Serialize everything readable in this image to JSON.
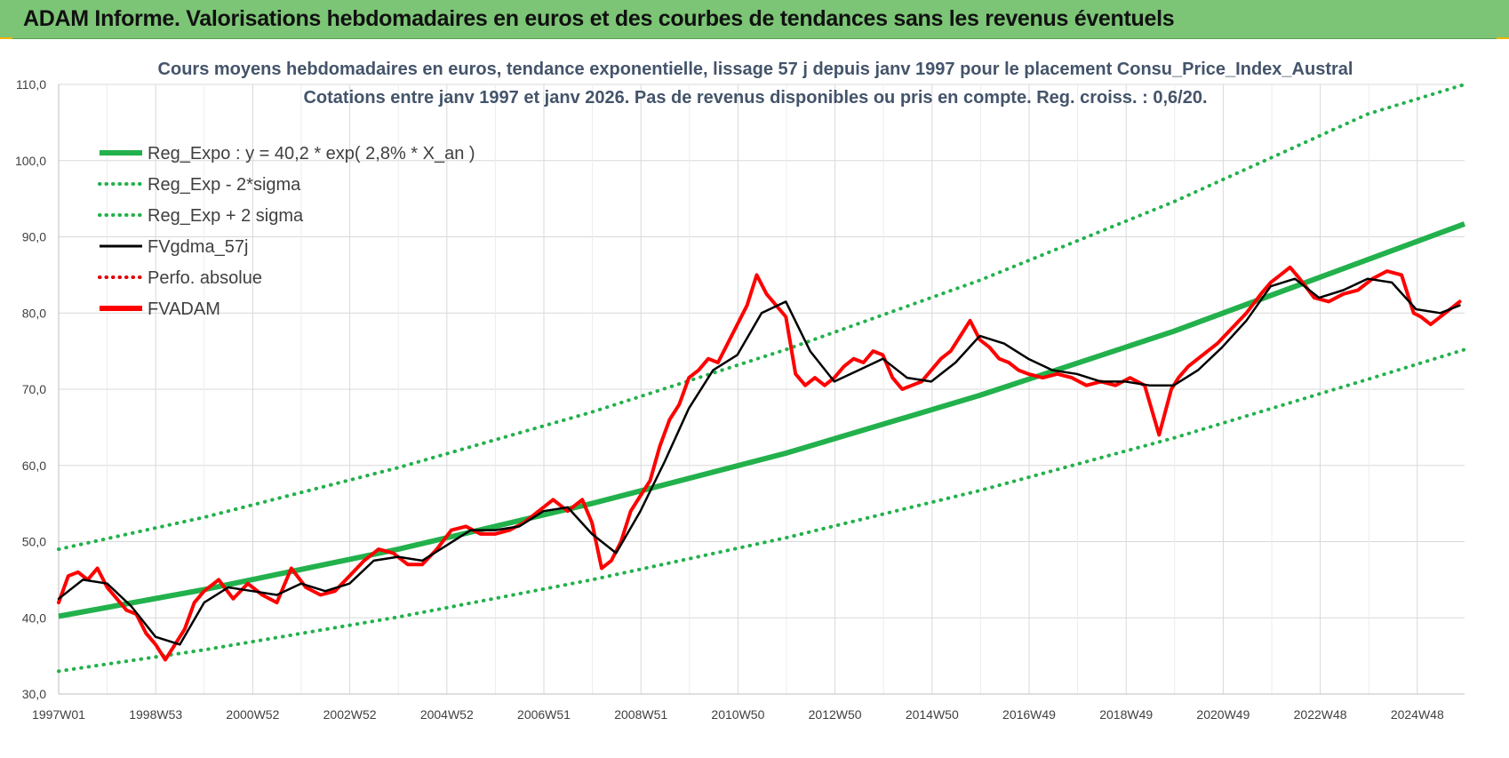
{
  "header": {
    "title": "ADAM Informe. Valorisations hebdomadaires en euros et des courbes de tendances sans les revenus éventuels"
  },
  "colors": {
    "header_bg": "#7cc576",
    "trend": "#22b14c",
    "band": "#22b14c",
    "gdma": "#000000",
    "perfo": "#e00000",
    "fvadam": "#ff0000",
    "grid": "#d9d9d9"
  },
  "chart_data": {
    "type": "line",
    "title": "Cours moyens hebdomadaires en euros, tendance exponentielle, lissage 57 j depuis janv 1997  pour le placement Consu_Price_Index_Austral",
    "subtitle": "Cotations entre janv 1997 et janv 2026. Pas de revenus disponibles ou pris  en compte. Reg. croiss. : 0,6/20.",
    "xlabel": "",
    "ylabel": "",
    "ylim": [
      30,
      110
    ],
    "y_ticks": [
      "30,0",
      "40,0",
      "50,0",
      "60,0",
      "70,0",
      "80,0",
      "90,0",
      "100,0",
      "110,0"
    ],
    "x_ticks": [
      "1997W01",
      "1998W53",
      "2000W52",
      "2002W52",
      "2004W52",
      "2006W51",
      "2008W51",
      "2010W50",
      "2012W50",
      "2014W50",
      "2016W49",
      "2018W49",
      "2020W49",
      "2022W48",
      "2024W48"
    ],
    "x_range_years": [
      1997.0,
      2026.0
    ],
    "grid": true,
    "legend_position": "top-left",
    "legend": [
      {
        "label": "Reg_Expo : y = 40,2 * exp( 2,8% *  X_an )",
        "color": "#22b14c",
        "style": "solid-thick"
      },
      {
        "label": "Reg_Exp - 2*sigma",
        "color": "#22b14c",
        "style": "dotted"
      },
      {
        "label": "Reg_Exp + 2 sigma",
        "color": "#22b14c",
        "style": "dotted"
      },
      {
        "label": "FVgdma_57j",
        "color": "#000000",
        "style": "solid"
      },
      {
        "label": "Perfo. absolue",
        "color": "#e00000",
        "style": "dotted"
      },
      {
        "label": "FVADAM",
        "color": "#ff0000",
        "style": "solid-thick"
      }
    ],
    "series": [
      {
        "name": "Reg_Expo : y = 40,2 * exp( 2,8% *  X_an )",
        "x": [
          1997,
          2000,
          2004,
          2008,
          2012,
          2016,
          2020,
          2024,
          2026
        ],
        "y": [
          40.2,
          43.7,
          49.0,
          55.0,
          61.6,
          69.2,
          77.6,
          87.0,
          91.7
        ]
      },
      {
        "name": "Reg_Exp - 2*sigma",
        "x": [
          1997,
          2000,
          2004,
          2008,
          2012,
          2016,
          2020,
          2024,
          2026
        ],
        "y": [
          33.0,
          35.8,
          40.1,
          45.0,
          50.5,
          56.7,
          63.6,
          71.3,
          75.2
        ]
      },
      {
        "name": "Reg_Exp + 2 sigma",
        "x": [
          1997,
          2000,
          2004,
          2008,
          2012,
          2016,
          2020,
          2024,
          2026
        ],
        "y": [
          49.0,
          53.2,
          59.7,
          67.0,
          75.2,
          84.3,
          94.6,
          106.1,
          110.0
        ]
      },
      {
        "name": "FVADAM",
        "x": [
          1997.0,
          1997.2,
          1997.4,
          1997.6,
          1997.8,
          1998.0,
          1998.2,
          1998.4,
          1998.6,
          1998.8,
          1999.0,
          1999.2,
          1999.4,
          1999.6,
          1999.8,
          2000.0,
          2000.3,
          2000.6,
          2000.9,
          2001.2,
          2001.5,
          2001.8,
          2002.1,
          2002.4,
          2002.7,
          2003.0,
          2003.3,
          2003.6,
          2003.9,
          2004.2,
          2004.5,
          2004.8,
          2005.1,
          2005.4,
          2005.7,
          2006.0,
          2006.3,
          2006.6,
          2006.9,
          2007.2,
          2007.5,
          2007.8,
          2008.0,
          2008.2,
          2008.4,
          2008.6,
          2008.8,
          2009.0,
          2009.2,
          2009.4,
          2009.6,
          2009.8,
          2010.0,
          2010.2,
          2010.4,
          2010.6,
          2010.8,
          2011.0,
          2011.2,
          2011.4,
          2011.6,
          2011.8,
          2012.0,
          2012.2,
          2012.4,
          2012.6,
          2012.8,
          2013.0,
          2013.2,
          2013.4,
          2013.6,
          2013.8,
          2014.0,
          2014.2,
          2014.4,
          2014.6,
          2014.8,
          2015.0,
          2015.2,
          2015.4,
          2015.6,
          2015.8,
          2016.0,
          2016.2,
          2016.4,
          2016.6,
          2016.8,
          2017.0,
          2017.3,
          2017.6,
          2017.9,
          2018.2,
          2018.5,
          2018.8,
          2019.1,
          2019.4,
          2019.7,
          2019.95,
          2020.1,
          2020.3,
          2020.6,
          2020.9,
          2021.2,
          2021.5,
          2021.8,
          2022.0,
          2022.2,
          2022.4,
          2022.6,
          2022.9,
          2023.2,
          2023.5,
          2023.8,
          2024.1,
          2024.4,
          2024.7,
          2024.95,
          2025.1,
          2025.3,
          2025.6,
          2025.9
        ],
        "y": [
          42.0,
          45.5,
          46.0,
          45.0,
          46.5,
          44.0,
          42.5,
          41.0,
          40.5,
          38.0,
          36.5,
          34.5,
          36.5,
          38.5,
          42.0,
          43.5,
          45.0,
          42.5,
          44.5,
          43.0,
          42.0,
          46.5,
          44.0,
          43.0,
          43.5,
          45.5,
          47.5,
          49.0,
          48.5,
          47.0,
          47.0,
          49.0,
          51.5,
          52.0,
          51.0,
          51.0,
          51.5,
          52.5,
          54.0,
          55.5,
          54.0,
          55.5,
          52.5,
          46.5,
          47.5,
          50.0,
          54.0,
          56.0,
          58.0,
          62.5,
          66.0,
          68.0,
          71.5,
          72.5,
          74.0,
          73.5,
          76.0,
          78.5,
          81.0,
          85.0,
          82.5,
          81.0,
          79.5,
          72.0,
          70.5,
          71.5,
          70.5,
          71.5,
          73.0,
          74.0,
          73.5,
          75.0,
          74.5,
          71.5,
          70.0,
          70.5,
          71.0,
          72.5,
          74.0,
          75.0,
          77.0,
          79.0,
          76.5,
          75.5,
          74.0,
          73.5,
          72.5,
          72.0,
          71.5,
          72.0,
          71.5,
          70.5,
          71.0,
          70.5,
          71.5,
          70.5,
          64.0,
          70.0,
          71.5,
          73.0,
          74.5,
          76.0,
          78.0,
          80.0,
          82.5,
          84.0,
          85.0,
          86.0,
          84.5,
          82.0,
          81.5,
          82.5,
          83.0,
          84.5,
          85.5,
          85.0,
          80.0,
          79.5,
          78.5,
          80.0,
          81.5
        ]
      },
      {
        "name": "FVgdma_57j",
        "x": [
          1997.0,
          1997.5,
          1998.0,
          1998.5,
          1999.0,
          1999.5,
          2000.0,
          2000.5,
          2001.0,
          2001.5,
          2002.0,
          2002.5,
          2003.0,
          2003.5,
          2004.0,
          2004.5,
          2005.0,
          2005.5,
          2006.0,
          2006.5,
          2007.0,
          2007.5,
          2008.0,
          2008.5,
          2009.0,
          2009.5,
          2010.0,
          2010.5,
          2011.0,
          2011.5,
          2012.0,
          2012.5,
          2013.0,
          2013.5,
          2014.0,
          2014.5,
          2015.0,
          2015.5,
          2016.0,
          2016.5,
          2017.0,
          2017.5,
          2018.0,
          2018.5,
          2019.0,
          2019.5,
          2020.0,
          2020.5,
          2021.0,
          2021.5,
          2022.0,
          2022.5,
          2023.0,
          2023.5,
          2024.0,
          2024.5,
          2025.0,
          2025.5,
          2025.9
        ],
        "y": [
          42.5,
          45.0,
          44.5,
          41.5,
          37.5,
          36.5,
          42.0,
          44.0,
          43.5,
          43.0,
          44.5,
          43.5,
          44.5,
          47.5,
          48.0,
          47.5,
          49.5,
          51.5,
          51.5,
          52.0,
          54.0,
          54.5,
          51.0,
          48.5,
          54.0,
          60.5,
          67.5,
          72.5,
          74.5,
          80.0,
          81.5,
          75.0,
          71.0,
          72.5,
          74.0,
          71.5,
          71.0,
          73.5,
          77.0,
          76.0,
          74.0,
          72.5,
          72.0,
          71.0,
          71.0,
          70.5,
          70.5,
          72.5,
          75.5,
          79.0,
          83.5,
          84.5,
          82.0,
          83.0,
          84.5,
          84.0,
          80.5,
          80.0,
          81.0
        ]
      }
    ]
  }
}
